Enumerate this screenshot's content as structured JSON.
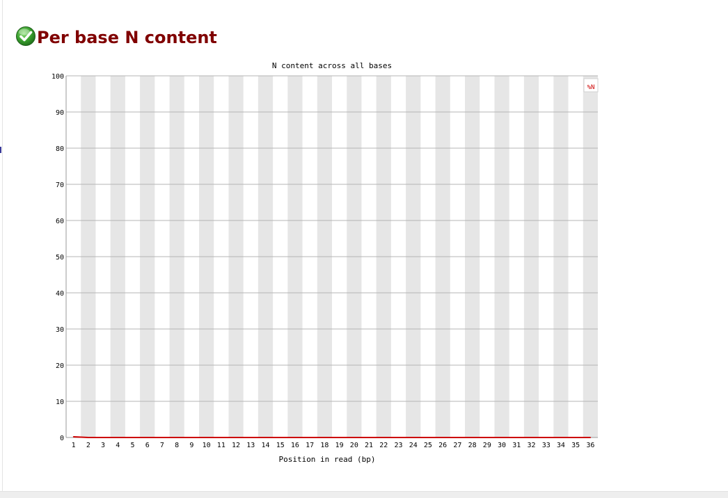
{
  "header": {
    "title": "Per base N content",
    "status_icon": "check-circle-icon",
    "status": "pass"
  },
  "colors": {
    "title": "#800000",
    "series": "#cc0000",
    "band": "#e6e6e6",
    "grid": "#b4b4b4",
    "status_pass": "#3aa02f"
  },
  "chart_data": {
    "type": "line",
    "title": "N content across all bases",
    "xlabel": "Position in read (bp)",
    "ylabel": "",
    "ylim": [
      0,
      100
    ],
    "yticks": [
      0,
      10,
      20,
      30,
      40,
      50,
      60,
      70,
      80,
      90,
      100
    ],
    "grid": true,
    "alternating_bands": true,
    "legend_position": "top-right",
    "x": [
      "1",
      "2",
      "3",
      "4",
      "5",
      "6",
      "7",
      "8",
      "9",
      "10",
      "11",
      "12",
      "13",
      "14",
      "15",
      "16",
      "17",
      "18",
      "19",
      "20",
      "21",
      "22",
      "23",
      "24",
      "25",
      "26",
      "27",
      "28",
      "29",
      "30",
      "31",
      "32",
      "33",
      "34",
      "35",
      "36"
    ],
    "series": [
      {
        "name": "%N",
        "color": "#cc0000",
        "values": [
          0.2,
          0,
          0,
          0,
          0,
          0,
          0,
          0,
          0,
          0,
          0,
          0,
          0,
          0,
          0,
          0,
          0,
          0,
          0,
          0,
          0,
          0,
          0,
          0,
          0,
          0,
          0,
          0,
          0,
          0,
          0,
          0,
          0,
          0,
          0,
          0
        ]
      }
    ]
  }
}
